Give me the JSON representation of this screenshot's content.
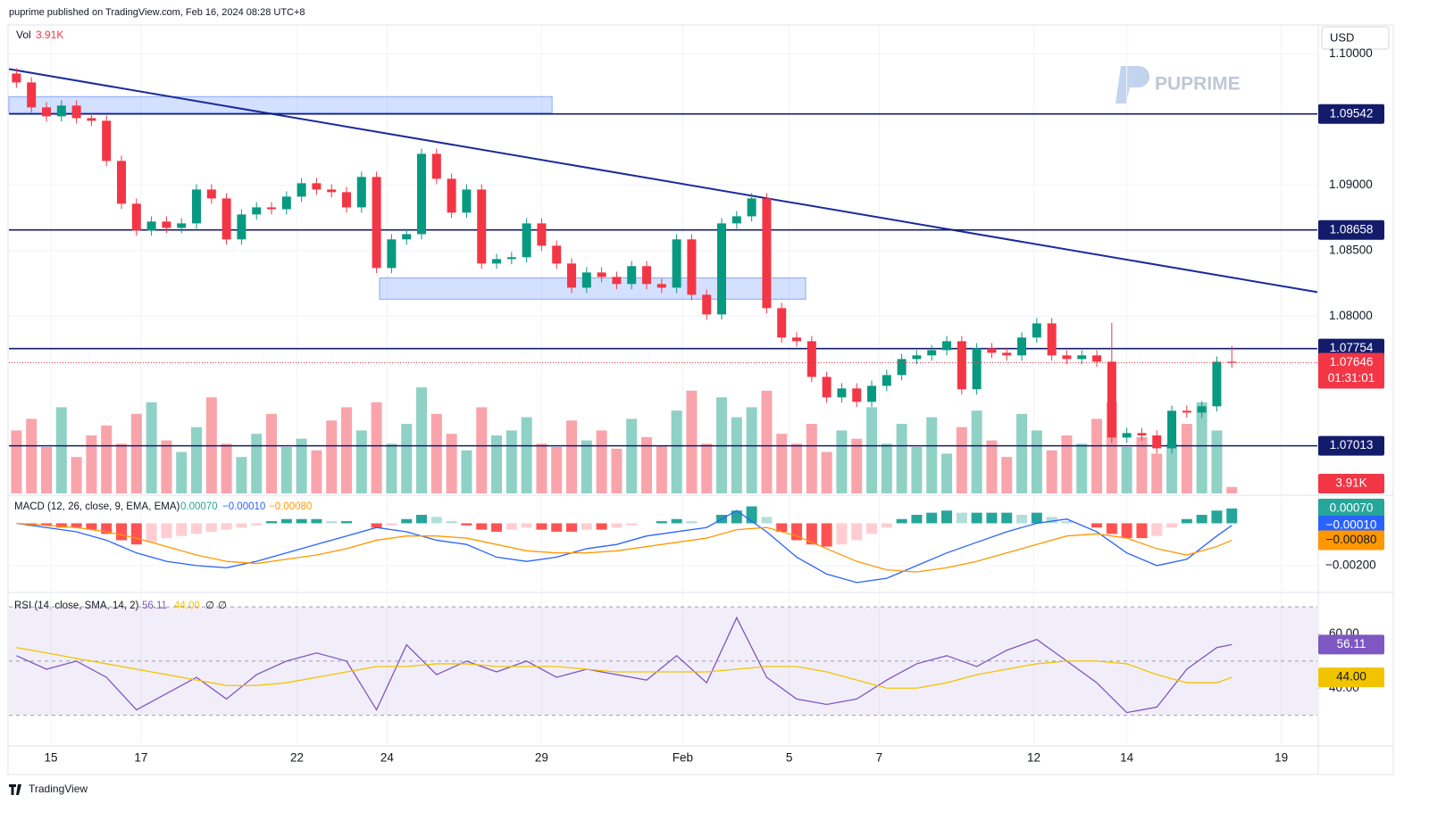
{
  "header": {
    "published": "puprime published on TradingView.com, Feb 16, 2024 08:28 UTC+8",
    "currency": "USD",
    "logo": "PUPRIME",
    "footer": "TradingView"
  },
  "chart_data": [
    {
      "type": "candlestick",
      "x": [
        0,
        1,
        2,
        3,
        4,
        5,
        6,
        7,
        8,
        9,
        10,
        11,
        12,
        13,
        14,
        15,
        16,
        17,
        18,
        19,
        20,
        21,
        22,
        23,
        24,
        25,
        26,
        27,
        28,
        29,
        30,
        31,
        32,
        33,
        34,
        35,
        36,
        37,
        38,
        39,
        40,
        41,
        42,
        43,
        44,
        45,
        46,
        47,
        48,
        49,
        50,
        51,
        52,
        53,
        54,
        55,
        56,
        57,
        58,
        59,
        60,
        61,
        62,
        63,
        64,
        65,
        66,
        67,
        68,
        69,
        70,
        71,
        72,
        73,
        74,
        75,
        76,
        77,
        78,
        79,
        80,
        81
      ],
      "open": [
        1.0985,
        1.09782,
        1.09592,
        1.09524,
        1.09606,
        1.0951,
        1.0949,
        1.09184,
        1.08858,
        1.08654,
        1.08722,
        1.08674,
        1.08708,
        1.08966,
        1.08898,
        1.08586,
        1.08776,
        1.0883,
        1.08816,
        1.08912,
        1.09014,
        1.08966,
        1.08946,
        1.0883,
        1.09062,
        1.08368,
        1.08586,
        1.08626,
        1.09238,
        1.09048,
        1.0879,
        1.08966,
        1.08402,
        1.08436,
        1.0845,
        1.08708,
        1.08538,
        1.08402,
        1.08218,
        1.08334,
        1.083,
        1.08246,
        1.08382,
        1.08246,
        1.08218,
        1.08586,
        1.08164,
        1.08014,
        1.08708,
        1.08762,
        1.08898,
        1.08062,
        1.07838,
        1.0781,
        1.07538,
        1.07382,
        1.0745,
        1.07348,
        1.0747,
        1.07552,
        1.07674,
        1.07702,
        1.07742,
        1.0781,
        1.07444,
        1.07756,
        1.07722,
        1.07702,
        1.07838,
        1.07946,
        1.07702,
        1.07674,
        1.07702,
        1.07654,
        1.07076,
        1.0711,
        1.07092,
        1.06994,
        1.0728,
        1.07266,
        1.07314,
        1.07654
      ],
      "high": [
        1.0989,
        1.09822,
        1.09632,
        1.09646,
        1.09646,
        1.0955,
        1.0953,
        1.09224,
        1.08898,
        1.08762,
        1.08762,
        1.08748,
        1.09006,
        1.09006,
        1.08938,
        1.08816,
        1.0887,
        1.0887,
        1.08952,
        1.09054,
        1.09054,
        1.09006,
        1.08986,
        1.09102,
        1.09102,
        1.08626,
        1.08666,
        1.09278,
        1.09278,
        1.09088,
        1.09006,
        1.09006,
        1.08476,
        1.0849,
        1.08748,
        1.08748,
        1.08578,
        1.08442,
        1.08374,
        1.08374,
        1.0834,
        1.08422,
        1.08422,
        1.08286,
        1.08626,
        1.08626,
        1.08204,
        1.08748,
        1.08802,
        1.08938,
        1.08938,
        1.08102,
        1.07878,
        1.0785,
        1.07578,
        1.0749,
        1.0749,
        1.0751,
        1.07592,
        1.07714,
        1.07742,
        1.07782,
        1.0785,
        1.0785,
        1.07796,
        1.07796,
        1.07762,
        1.07878,
        1.07986,
        1.07986,
        1.07742,
        1.07742,
        1.07742,
        1.0795,
        1.0715,
        1.0715,
        1.07132,
        1.0732,
        1.0732,
        1.07354,
        1.07694,
        1.07774
      ],
      "low": [
        1.09742,
        1.09552,
        1.09484,
        1.09484,
        1.0947,
        1.0945,
        1.09144,
        1.08818,
        1.08614,
        1.08614,
        1.08634,
        1.08634,
        1.08668,
        1.08858,
        1.08546,
        1.08546,
        1.08736,
        1.08776,
        1.08776,
        1.08872,
        1.08926,
        1.08906,
        1.0879,
        1.0879,
        1.08328,
        1.08328,
        1.08546,
        1.08586,
        1.09008,
        1.0875,
        1.0875,
        1.08362,
        1.08362,
        1.08396,
        1.0841,
        1.08498,
        1.08362,
        1.08178,
        1.08178,
        1.0826,
        1.08206,
        1.08206,
        1.08206,
        1.08178,
        1.08178,
        1.08124,
        1.07974,
        1.07974,
        1.08668,
        1.08722,
        1.08022,
        1.07798,
        1.0777,
        1.07498,
        1.07342,
        1.07342,
        1.07308,
        1.07308,
        1.0743,
        1.07512,
        1.07634,
        1.07662,
        1.07702,
        1.07404,
        1.07404,
        1.07682,
        1.07662,
        1.07662,
        1.07798,
        1.07662,
        1.07634,
        1.07634,
        1.07614,
        1.07036,
        1.07036,
        1.07052,
        1.06954,
        1.06954,
        1.07226,
        1.07226,
        1.07274,
        1.07606
      ],
      "close": [
        1.09782,
        1.09592,
        1.09524,
        1.09606,
        1.0951,
        1.0949,
        1.09184,
        1.08858,
        1.08654,
        1.08722,
        1.08674,
        1.08708,
        1.08966,
        1.08898,
        1.08586,
        1.08776,
        1.0883,
        1.08816,
        1.08912,
        1.09014,
        1.08966,
        1.08946,
        1.0883,
        1.09062,
        1.08368,
        1.08586,
        1.08626,
        1.09238,
        1.09048,
        1.0879,
        1.08966,
        1.08402,
        1.08436,
        1.0845,
        1.08708,
        1.08538,
        1.08402,
        1.08218,
        1.08334,
        1.083,
        1.08246,
        1.08382,
        1.08246,
        1.08218,
        1.08586,
        1.08164,
        1.08014,
        1.08708,
        1.08762,
        1.08898,
        1.08062,
        1.07838,
        1.0781,
        1.07538,
        1.07382,
        1.0745,
        1.07348,
        1.0747,
        1.07552,
        1.07674,
        1.07702,
        1.07742,
        1.0781,
        1.07444,
        1.07756,
        1.07722,
        1.07702,
        1.07838,
        1.07946,
        1.07702,
        1.07674,
        1.07702,
        1.07654,
        1.07076,
        1.0711,
        1.07092,
        1.06994,
        1.0728,
        1.07266,
        1.07314,
        1.07654,
        1.07646
      ],
      "up_color": "#089981",
      "down_color": "#f23645",
      "xlim": [
        -0.5,
        86.7
      ],
      "xticks": [
        {
          "value": 2.3,
          "label": "15"
        },
        {
          "value": 8.3,
          "label": "17"
        },
        {
          "value": 18.7,
          "label": "22"
        },
        {
          "value": 24.7,
          "label": "24"
        },
        {
          "value": 35,
          "label": "29"
        },
        {
          "value": 44.4,
          "label": "Feb"
        },
        {
          "value": 51.5,
          "label": "5"
        },
        {
          "value": 57.5,
          "label": "7"
        },
        {
          "value": 67.8,
          "label": "12"
        },
        {
          "value": 74,
          "label": "14"
        },
        {
          "value": 84.3,
          "label": "19"
        }
      ],
      "ylim": [
        1.0665,
        1.1022
      ],
      "yticks": [
        {
          "value": 1.08,
          "label": "1.08000"
        },
        {
          "value": 1.085,
          "label": "1.08500"
        },
        {
          "value": 1.09,
          "label": "1.09000"
        },
        {
          "value": 1.1,
          "label": "1.10000"
        }
      ],
      "grid": true,
      "levels": [
        1.09542,
        1.08658,
        1.07754,
        1.07013
      ],
      "level_color": "#131c6b",
      "trendline": {
        "x": [
          -0.5,
          86.7
        ],
        "y": [
          1.09884,
          1.08184
        ],
        "color": "#1a2a9a"
      },
      "zones": [
        {
          "x": [
            -0.5,
            35.7
          ],
          "y": [
            1.09551,
            1.09674
          ]
        },
        {
          "x": [
            24.2,
            52.6
          ],
          "y": [
            1.0813,
            1.08293
          ]
        }
      ],
      "zone_color": "#2962ff",
      "last_price": 1.07646,
      "countdown": "01:31:01",
      "volume": {
        "name": "Vol",
        "last_label": "3.91K",
        "vlim": [
          0,
          70000
        ],
        "values": [
          38000,
          45000,
          28000,
          52000,
          22000,
          35000,
          41000,
          30000,
          48000,
          55000,
          32000,
          25000,
          40000,
          58000,
          30000,
          22000,
          36000,
          48000,
          28000,
          33000,
          26000,
          44000,
          52000,
          38000,
          55000,
          30000,
          42000,
          64000,
          48000,
          36000,
          26000,
          52000,
          35000,
          38000,
          46000,
          30000,
          28000,
          44000,
          32000,
          38000,
          27000,
          45000,
          34000,
          29000,
          50000,
          62000,
          30000,
          58000,
          46000,
          52000,
          62000,
          36000,
          30000,
          42000,
          25000,
          38000,
          33000,
          52000,
          30000,
          42000,
          28000,
          46000,
          24000,
          40000,
          50000,
          32000,
          22000,
          48000,
          38000,
          26000,
          35000,
          30000,
          45000,
          55000,
          28000,
          34000,
          24000,
          30000,
          42000,
          55000,
          38000,
          3910
        ]
      }
    },
    {
      "type": "macd",
      "title": "MACD (12, 26, close, 9, EMA, EMA)",
      "x": [
        0,
        2,
        4,
        6,
        8,
        10,
        12,
        14,
        16,
        18,
        20,
        22,
        24,
        26,
        28,
        30,
        32,
        34,
        36,
        38,
        40,
        42,
        44,
        46,
        48,
        50,
        52,
        54,
        56,
        58,
        60,
        62,
        64,
        66,
        68,
        70,
        72,
        74,
        76,
        78,
        80,
        81
      ],
      "histogram": {
        "last_label": "0.00070",
        "values": [
          0,
          -0.0001,
          -0.0001,
          -0.0002,
          -0.0002,
          -0.0003,
          -0.0005,
          -0.0008,
          -0.001,
          -0.0009,
          -0.0007,
          -0.0006,
          -0.0005,
          -0.0004,
          -0.0003,
          -0.0002,
          -0.0001,
          0.0001,
          0.0002,
          0.0002,
          0.0002,
          0.0001,
          0.0001,
          0,
          -0.0002,
          -0.0001,
          0.0002,
          0.0004,
          0.0003,
          0.0001,
          -0.0001,
          -0.0003,
          -0.0004,
          -0.0003,
          -0.0002,
          -0.0003,
          -0.0004,
          -0.0004,
          -0.0003,
          -0.0003,
          -0.0002,
          -0.0001,
          0,
          0.0001,
          0.0002,
          0.0001,
          0,
          0.0004,
          0.0006,
          0.0008,
          0.0003,
          -0.0004,
          -0.0008,
          -0.001,
          -0.0011,
          -0.001,
          -0.0008,
          -0.0005,
          -0.0002,
          0.0002,
          0.0004,
          0.0005,
          0.0006,
          0.0005,
          0.0005,
          0.0005,
          0.0005,
          0.0004,
          0.0005,
          0.0003,
          0.0001,
          0,
          -0.0002,
          -0.0005,
          -0.0007,
          -0.0007,
          -0.0006,
          -0.0002,
          0.0002,
          0.0004,
          0.0006,
          0.0007
        ],
        "up_color": "#26a69a",
        "down_color": "#ff5252"
      },
      "series": [
        {
          "color": "#2962ff",
          "last_label": "−0.00010",
          "values": [
            0,
            -0.0002,
            -0.0004,
            -0.0008,
            -0.0014,
            -0.0018,
            -0.002,
            -0.0021,
            -0.0018,
            -0.0014,
            -0.001,
            -0.0006,
            -0.0002,
            -0.0004,
            -0.0008,
            -0.001,
            -0.0016,
            -0.0018,
            -0.0016,
            -0.0012,
            -0.001,
            -0.0006,
            -0.0004,
            -0.0002,
            0.0006,
            -0.0004,
            -0.0016,
            -0.0024,
            -0.0028,
            -0.0026,
            -0.002,
            -0.0014,
            -0.0009,
            -0.0004,
            0,
            0.0002,
            -0.0004,
            -0.0014,
            -0.002,
            -0.0017,
            -0.0006,
            -0.0001
          ]
        },
        {
          "color": "#ff9800",
          "last_label": "−0.00080",
          "values": [
            0,
            -0.0001,
            -0.0002,
            -0.0004,
            -0.0007,
            -0.0011,
            -0.0015,
            -0.0018,
            -0.0019,
            -0.0017,
            -0.0015,
            -0.0012,
            -0.0008,
            -0.0006,
            -0.0006,
            -0.0007,
            -0.001,
            -0.0013,
            -0.0014,
            -0.0014,
            -0.0013,
            -0.0011,
            -0.0009,
            -0.0007,
            -0.0003,
            -0.0002,
            -0.0006,
            -0.0012,
            -0.0018,
            -0.0022,
            -0.0023,
            -0.0021,
            -0.0018,
            -0.0014,
            -0.001,
            -0.0006,
            -0.0005,
            -0.0007,
            -0.0012,
            -0.0015,
            -0.0011,
            -0.0008
          ]
        }
      ],
      "ylim": [
        -0.0031,
        0.0012
      ],
      "yticks": [
        {
          "value": -0.002,
          "label": "−0.00200"
        }
      ]
    },
    {
      "type": "rsi",
      "title": "RSI (14, close, SMA, 14, 2)",
      "x": [
        0,
        2,
        4,
        6,
        8,
        10,
        12,
        14,
        16,
        18,
        20,
        22,
        24,
        26,
        28,
        30,
        32,
        34,
        36,
        38,
        40,
        42,
        44,
        46,
        48,
        50,
        52,
        54,
        56,
        58,
        60,
        62,
        64,
        66,
        68,
        70,
        72,
        74,
        76,
        78,
        80,
        81
      ],
      "series": [
        {
          "color": "#7e57c2",
          "last_label": "56.11",
          "values": [
            52,
            47,
            50,
            44,
            32,
            38,
            44,
            36,
            45,
            50,
            53,
            50,
            32,
            56,
            45,
            50,
            46,
            50,
            44,
            47,
            45,
            43,
            52,
            42,
            66,
            44,
            36,
            34,
            36,
            43,
            49,
            52,
            48,
            54,
            58,
            50,
            42,
            31,
            33,
            47,
            55,
            56.11
          ]
        },
        {
          "color": "#f2c400",
          "last_label": "44.00",
          "values": [
            55,
            53,
            51,
            49,
            47,
            45,
            43,
            41,
            41,
            42,
            44,
            46,
            48,
            48,
            49,
            49,
            48,
            48,
            48,
            47,
            46,
            46,
            46,
            46,
            47,
            48,
            48,
            46,
            43,
            40,
            40,
            42,
            45,
            47,
            49,
            50,
            50,
            49,
            45,
            42,
            42,
            44
          ]
        }
      ],
      "extra_labels": [
        "∅",
        "∅"
      ],
      "ylim": [
        20,
        74
      ],
      "yticks": [
        {
          "value": 40,
          "label": "40.00"
        },
        {
          "value": 60,
          "label": "60.00"
        }
      ],
      "band": [
        30,
        70
      ],
      "midline": 50
    }
  ]
}
